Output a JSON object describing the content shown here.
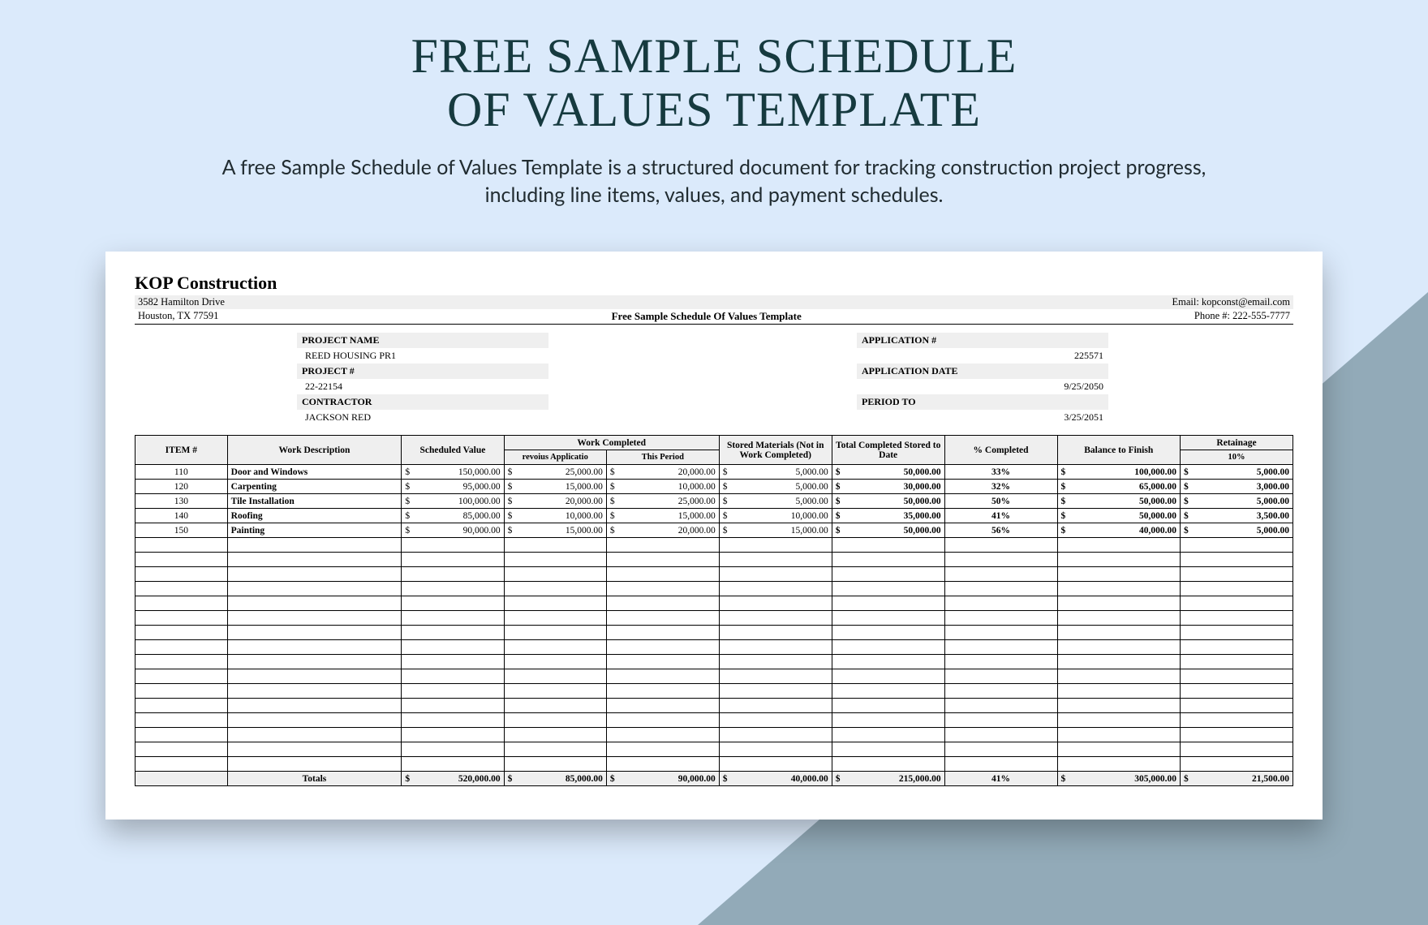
{
  "hero": {
    "title_line1": "FREE SAMPLE SCHEDULE",
    "title_line2": "OF VALUES TEMPLATE",
    "subtitle": "A free Sample Schedule of Values Template is a structured document for tracking construction project progress, including line items, values, and payment schedules."
  },
  "colors": {
    "page_bg": "#dbeafb",
    "triangle": "#92aab8",
    "heading": "#163a3f",
    "sheet_bg": "#ffffff",
    "row_bg": "#efefef",
    "border": "#000000"
  },
  "doc": {
    "company": "KOP Construction",
    "address1": "3582 Hamilton Drive",
    "address2": "Houston, TX 77591",
    "title": "Free Sample Schedule Of Values Template",
    "email": "Email: kopconst@email.com",
    "phone": "Phone #: 222-555-7777",
    "meta_labels": {
      "project_name": "PROJECT NAME",
      "project_no": "PROJECT #",
      "contractor": "CONTRACTOR",
      "app_no": "APPLICATION #",
      "app_date": "APPLICATION DATE",
      "period_to": "PERIOD TO"
    },
    "meta_values": {
      "project_name": "REED HOUSING PR1",
      "project_no": "22-22154",
      "contractor": "JACKSON RED",
      "app_no": "225571",
      "app_date": "9/25/2050",
      "period_to": "3/25/2051"
    }
  },
  "table": {
    "type": "table",
    "headers": {
      "item": "ITEM #",
      "desc": "Work Description",
      "sched": "Scheduled Value",
      "work_completed": "Work Completed",
      "prev": "revoius Applicatio",
      "this": "This Period",
      "stored": "Stored Materials (Not in Work Completed)",
      "total": "Total Completed Stored to Date",
      "pct": "% Completed",
      "balance": "Balance to Finish",
      "retain": "Retainage",
      "retain_sub": "10%"
    },
    "rows": [
      {
        "item": "110",
        "desc": "Door and Windows",
        "sched": "150,000.00",
        "prev": "25,000.00",
        "this": "20,000.00",
        "stored": "5,000.00",
        "total": "50,000.00",
        "pct": "33%",
        "balance": "100,000.00",
        "retain": "5,000.00"
      },
      {
        "item": "120",
        "desc": "Carpenting",
        "sched": "95,000.00",
        "prev": "15,000.00",
        "this": "10,000.00",
        "stored": "5,000.00",
        "total": "30,000.00",
        "pct": "32%",
        "balance": "65,000.00",
        "retain": "3,000.00"
      },
      {
        "item": "130",
        "desc": "Tile Installation",
        "sched": "100,000.00",
        "prev": "20,000.00",
        "this": "25,000.00",
        "stored": "5,000.00",
        "total": "50,000.00",
        "pct": "50%",
        "balance": "50,000.00",
        "retain": "5,000.00"
      },
      {
        "item": "140",
        "desc": "Roofing",
        "sched": "85,000.00",
        "prev": "10,000.00",
        "this": "15,000.00",
        "stored": "10,000.00",
        "total": "35,000.00",
        "pct": "41%",
        "balance": "50,000.00",
        "retain": "3,500.00"
      },
      {
        "item": "150",
        "desc": "Painting",
        "sched": "90,000.00",
        "prev": "15,000.00",
        "this": "20,000.00",
        "stored": "15,000.00",
        "total": "50,000.00",
        "pct": "56%",
        "balance": "40,000.00",
        "retain": "5,000.00"
      }
    ],
    "empty_rows": 16,
    "totals": {
      "label": "Totals",
      "sched": "520,000.00",
      "prev": "85,000.00",
      "this": "90,000.00",
      "stored": "40,000.00",
      "total": "215,000.00",
      "pct": "41%",
      "balance": "305,000.00",
      "retain": "21,500.00"
    }
  }
}
